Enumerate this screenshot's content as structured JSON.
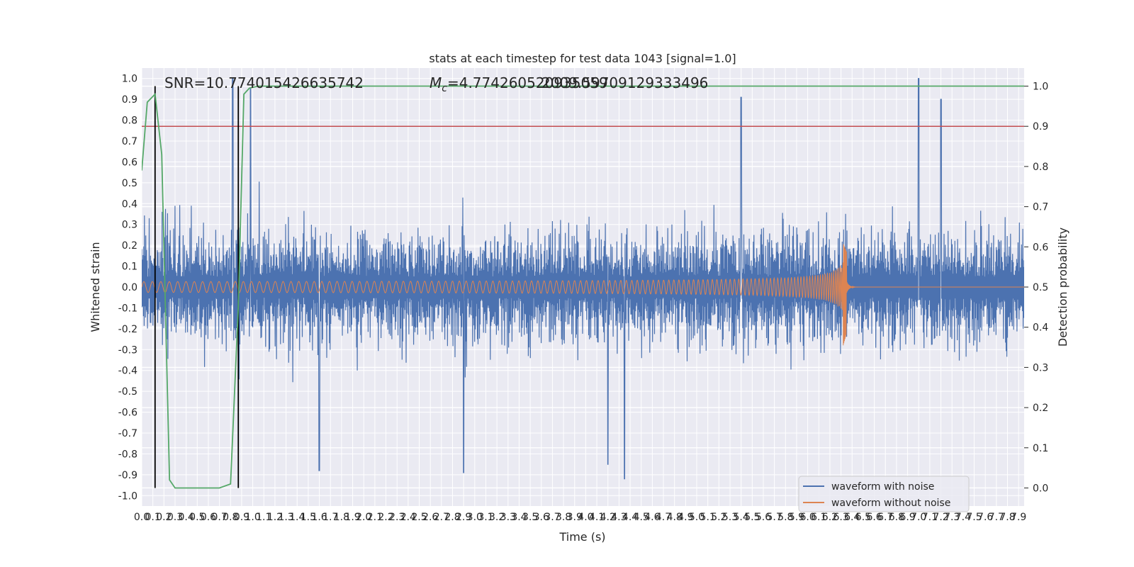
{
  "chart_data": {
    "type": "line",
    "title": "stats at each timestep for test data 1043 [signal=1.0]",
    "xlabel": "Time (s)",
    "ylabel": "Whitened strain",
    "y2label": "Detection probability",
    "xlim": [
      0.0,
      7.95
    ],
    "ylim": [
      -1.05,
      1.05
    ],
    "y2lim": [
      -0.045,
      1.045
    ],
    "x_tick_step": 0.1,
    "y_tick_step": 0.1,
    "y2_tick_step": 0.1,
    "grid": true,
    "legend_position": "bottom-right",
    "annotations": {
      "snr": "SNR=10.774015426635742",
      "mc_symbol": "M",
      "mc_subscript": "c",
      "mc_value_a": "=4.774260520935059",
      "mc_value_b": "2009.59709129333496"
    },
    "threshold_y2": 0.9,
    "vlines_x": [
      0.12,
      0.87
    ],
    "series": [
      {
        "name": "waveform with noise",
        "axis": "left",
        "color": "#4c72b0",
        "noise_envelope": 0.35,
        "t_range": [
          0.0,
          7.95
        ],
        "notable_peaks": [
          {
            "x": 0.82,
            "y": 1.0
          },
          {
            "x": 0.98,
            "y": 0.95
          },
          {
            "x": 5.4,
            "y": 0.91
          },
          {
            "x": 7.0,
            "y": 1.0
          },
          {
            "x": 7.2,
            "y": 0.9
          },
          {
            "x": 1.6,
            "y": -0.88
          },
          {
            "x": 2.9,
            "y": -0.89
          },
          {
            "x": 4.2,
            "y": -0.85
          },
          {
            "x": 4.35,
            "y": -0.92
          }
        ]
      },
      {
        "name": "waveform without noise",
        "axis": "left",
        "color": "#dd8452",
        "chirp_start_x": 0.0,
        "chirp_merger_x": 6.35,
        "amplitude_start": 0.02,
        "amplitude_peak": 0.21,
        "amplitude_trough": -0.28
      },
      {
        "name": "",
        "axis": "right",
        "color": "#55a868",
        "x": [
          0.0,
          0.05,
          0.12,
          0.18,
          0.25,
          0.3,
          0.5,
          0.7,
          0.8,
          0.87,
          0.92,
          0.97,
          1.05,
          1.1,
          7.95
        ],
        "y": [
          0.79,
          0.96,
          0.98,
          0.83,
          0.02,
          0.0,
          0.0,
          0.0,
          0.01,
          0.45,
          0.98,
          0.995,
          1.0,
          1.0,
          1.0
        ]
      }
    ]
  }
}
